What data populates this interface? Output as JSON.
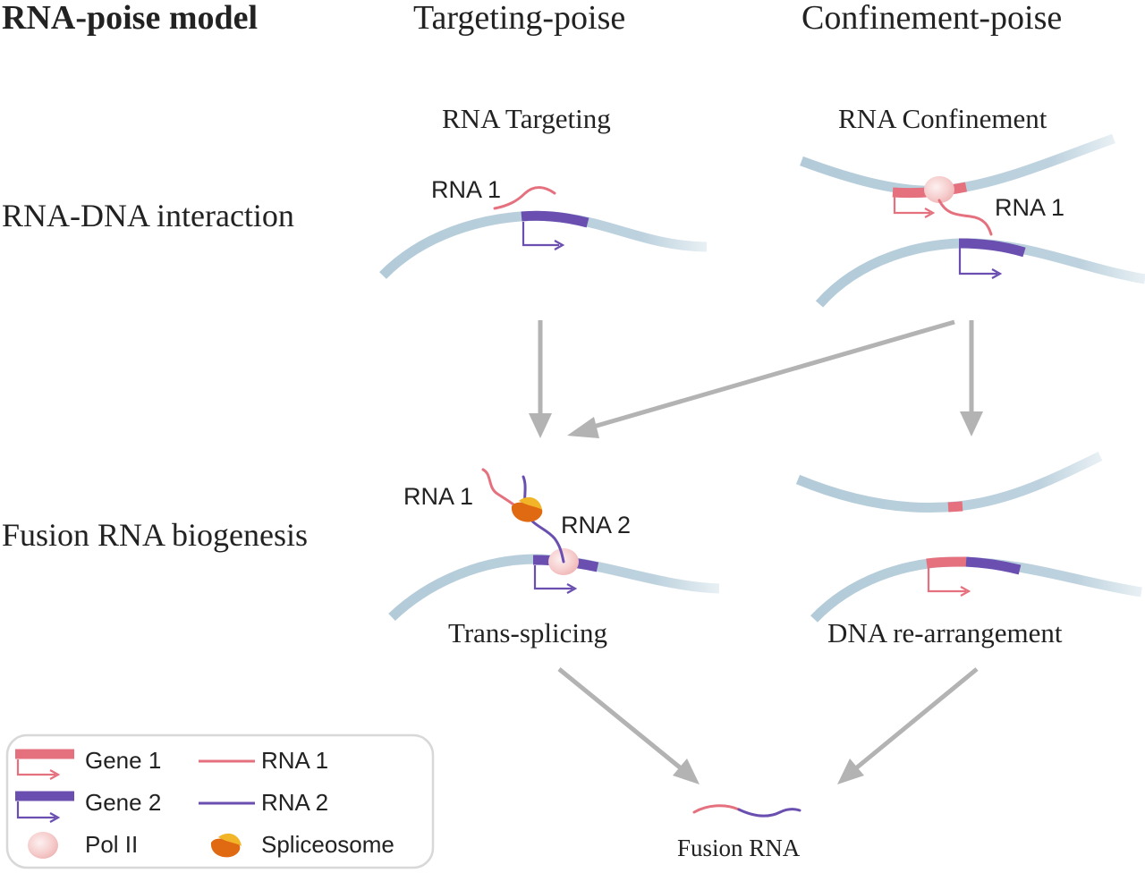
{
  "title": "RNA-poise model",
  "columns": {
    "targeting": "Targeting-poise",
    "confinement": "Confinement-poise"
  },
  "rows": {
    "interaction": "RNA-DNA interaction",
    "biogenesis": "Fusion RNA biogenesis"
  },
  "subheads": {
    "targeting": "RNA Targeting",
    "confinement": "RNA Confinement"
  },
  "labels": {
    "rna1_targeting": "RNA 1",
    "rna1_confinement": "RNA 1",
    "rna1_splicing": "RNA 1",
    "rna2_splicing": "RNA 2",
    "trans_splicing": "Trans-splicing",
    "dna_rearrangement": "DNA re-arrangement",
    "fusion_rna": "Fusion RNA"
  },
  "legend": {
    "gene1": "Gene 1",
    "gene2": "Gene 2",
    "pol2": "Pol II",
    "rna1": "RNA 1",
    "rna2": "RNA 2",
    "spliceosome": "Spliceosome"
  },
  "colors": {
    "dna": "#b8cfdc",
    "gene1": "#e5717f",
    "gene2": "#6a4fb0",
    "rna1": "#e5717f",
    "rna2": "#6a4fb0",
    "arrow": "#b3b3b3",
    "pol2": "#f7c9c9",
    "spliceosome_outer": "#f0a11c",
    "spliceosome_inner": "#e06a12"
  },
  "icons": [
    "pol-ii-icon",
    "spliceosome-icon",
    "promoter-arrow-icon"
  ]
}
